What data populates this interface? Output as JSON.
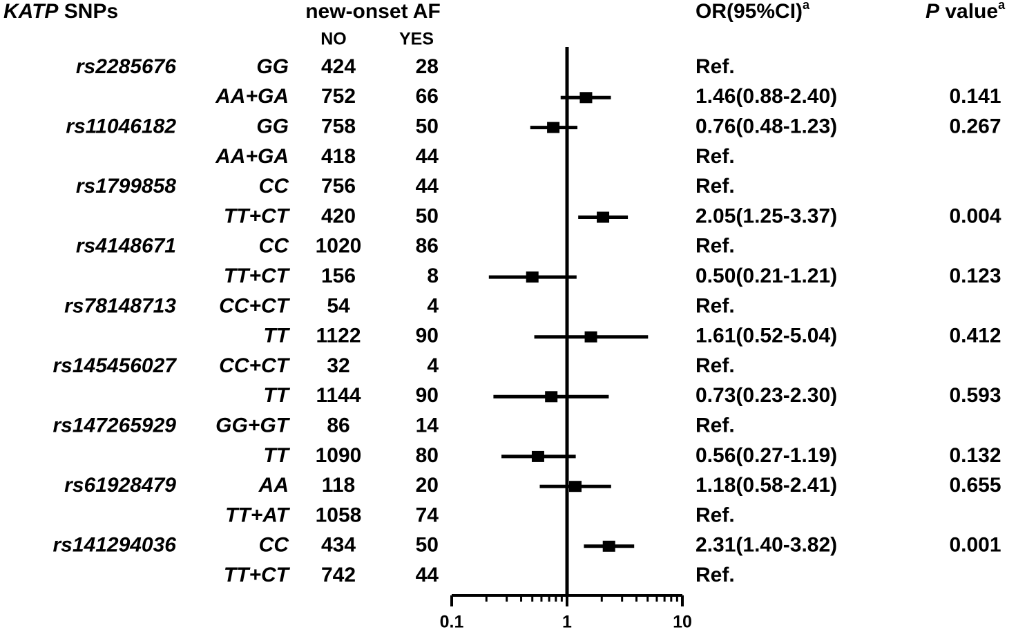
{
  "chart_data": {
    "type": "forest",
    "header": {
      "snp_italic": "KATP",
      "snp_rest": " SNPs",
      "group": "new-onset AF",
      "no": "NO",
      "yes": "YES",
      "or": "OR(95%CI)",
      "or_sup": "a",
      "p_italic": "P",
      "p_rest": " value",
      "p_sup": "a"
    },
    "rows": [
      {
        "snp": "rs2285676",
        "genotype": "GG",
        "no": 424,
        "yes": 28,
        "or_label": "Ref."
      },
      {
        "genotype": "AA+GA",
        "no": 752,
        "yes": 66,
        "or_label": "1.46(0.88-2.40)",
        "or": 1.46,
        "lo": 0.88,
        "hi": 2.4,
        "p": 0.141
      },
      {
        "snp": "rs11046182",
        "genotype": "GG",
        "no": 758,
        "yes": 50,
        "or_label": "0.76(0.48-1.23)",
        "or": 0.76,
        "lo": 0.48,
        "hi": 1.23,
        "p": 0.267
      },
      {
        "genotype": "AA+GA",
        "no": 418,
        "yes": 44,
        "or_label": "Ref."
      },
      {
        "snp": "rs1799858",
        "genotype": "CC",
        "no": 756,
        "yes": 44,
        "or_label": "Ref."
      },
      {
        "genotype": "TT+CT",
        "no": 420,
        "yes": 50,
        "or_label": "2.05(1.25-3.37)",
        "or": 2.05,
        "lo": 1.25,
        "hi": 3.37,
        "p": 0.004
      },
      {
        "snp": "rs4148671",
        "genotype": "CC",
        "no": 1020,
        "yes": 86,
        "or_label": "Ref."
      },
      {
        "genotype": "TT+CT",
        "no": 156,
        "yes": 8,
        "or_label": "0.50(0.21-1.21)",
        "or": 0.5,
        "lo": 0.21,
        "hi": 1.21,
        "p": 0.123
      },
      {
        "snp": "rs78148713",
        "genotype": "CC+CT",
        "no": 54,
        "yes": 4,
        "or_label": "Ref."
      },
      {
        "genotype": "TT",
        "no": 1122,
        "yes": 90,
        "or_label": "1.61(0.52-5.04)",
        "or": 1.61,
        "lo": 0.52,
        "hi": 5.04,
        "p": 0.412
      },
      {
        "snp": "rs145456027",
        "genotype": "CC+CT",
        "no": 32,
        "yes": 4,
        "or_label": "Ref."
      },
      {
        "genotype": "TT",
        "no": 1144,
        "yes": 90,
        "or_label": "0.73(0.23-2.30)",
        "or": 0.73,
        "lo": 0.23,
        "hi": 2.3,
        "p": 0.593
      },
      {
        "snp": "rs147265929",
        "genotype": "GG+GT",
        "no": 86,
        "yes": 14,
        "or_label": "Ref."
      },
      {
        "genotype": "TT",
        "no": 1090,
        "yes": 80,
        "or_label": "0.56(0.27-1.19)",
        "or": 0.56,
        "lo": 0.27,
        "hi": 1.19,
        "p": 0.132
      },
      {
        "snp": "rs61928479",
        "genotype": "AA",
        "no": 118,
        "yes": 20,
        "or_label": "1.18(0.58-2.41)",
        "or": 1.18,
        "lo": 0.58,
        "hi": 2.41,
        "p": 0.655
      },
      {
        "genotype": "TT+AT",
        "no": 1058,
        "yes": 74,
        "or_label": "Ref."
      },
      {
        "snp": "rs141294036",
        "genotype": "CC",
        "no": 434,
        "yes": 50,
        "or_label": "2.31(1.40-3.82)",
        "or": 2.31,
        "lo": 1.4,
        "hi": 3.82,
        "p": 0.001
      },
      {
        "genotype": "TT+CT",
        "no": 742,
        "yes": 44,
        "or_label": "Ref."
      }
    ],
    "xscale": "log",
    "xlim": [
      0.1,
      10
    ],
    "xticks": [
      0.1,
      1,
      10
    ],
    "xminorticks": [
      0.2,
      0.3,
      0.4,
      0.5,
      0.6,
      0.7,
      0.8,
      0.9,
      2,
      3,
      4,
      5,
      6,
      7,
      8,
      9
    ],
    "reference": 1,
    "color": "#000000"
  }
}
